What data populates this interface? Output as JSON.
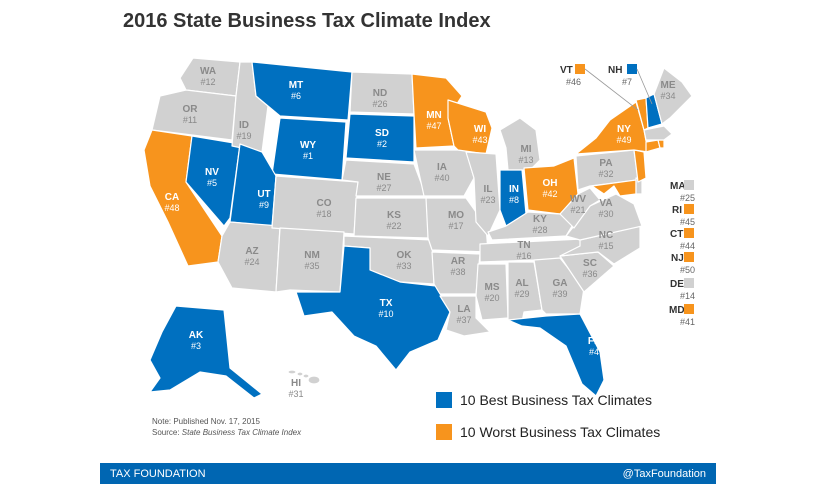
{
  "title": "2016 State Business Tax Climate Index",
  "colors": {
    "best": "#0070c0",
    "worst": "#f7941d",
    "neutral": "#d1d1d1",
    "border": "#ffffff",
    "footer": "#0066b2"
  },
  "states": {
    "WA": {
      "label": "WA",
      "rank": "#12"
    },
    "OR": {
      "label": "OR",
      "rank": "#11"
    },
    "CA": {
      "label": "CA",
      "rank": "#48"
    },
    "NV": {
      "label": "NV",
      "rank": "#5"
    },
    "ID": {
      "label": "ID",
      "rank": "#19"
    },
    "MT": {
      "label": "MT",
      "rank": "#6"
    },
    "WY": {
      "label": "WY",
      "rank": "#1"
    },
    "UT": {
      "label": "UT",
      "rank": "#9"
    },
    "AZ": {
      "label": "AZ",
      "rank": "#24"
    },
    "CO": {
      "label": "CO",
      "rank": "#18"
    },
    "NM": {
      "label": "NM",
      "rank": "#35"
    },
    "ND": {
      "label": "ND",
      "rank": "#26"
    },
    "SD": {
      "label": "SD",
      "rank": "#2"
    },
    "NE": {
      "label": "NE",
      "rank": "#27"
    },
    "KS": {
      "label": "KS",
      "rank": "#22"
    },
    "OK": {
      "label": "OK",
      "rank": "#33"
    },
    "TX": {
      "label": "TX",
      "rank": "#10"
    },
    "MN": {
      "label": "MN",
      "rank": "#47"
    },
    "IA": {
      "label": "IA",
      "rank": "#40"
    },
    "MO": {
      "label": "MO",
      "rank": "#17"
    },
    "AR": {
      "label": "AR",
      "rank": "#38"
    },
    "LA": {
      "label": "LA",
      "rank": "#37"
    },
    "WI": {
      "label": "WI",
      "rank": "#43"
    },
    "IL": {
      "label": "IL",
      "rank": "#23"
    },
    "MI": {
      "label": "MI",
      "rank": "#13"
    },
    "IN": {
      "label": "IN",
      "rank": "#8"
    },
    "OH": {
      "label": "OH",
      "rank": "#42"
    },
    "KY": {
      "label": "KY",
      "rank": "#28"
    },
    "TN": {
      "label": "TN",
      "rank": "#16"
    },
    "MS": {
      "label": "MS",
      "rank": "#20"
    },
    "AL": {
      "label": "AL",
      "rank": "#29"
    },
    "GA": {
      "label": "GA",
      "rank": "#39"
    },
    "FL": {
      "label": "FL",
      "rank": "#4"
    },
    "SC": {
      "label": "SC",
      "rank": "#36"
    },
    "NC": {
      "label": "NC",
      "rank": "#15"
    },
    "VA": {
      "label": "VA",
      "rank": "#30"
    },
    "WV": {
      "label": "WV",
      "rank": "#21"
    },
    "PA": {
      "label": "PA",
      "rank": "#32"
    },
    "NY": {
      "label": "NY",
      "rank": "#49"
    },
    "ME": {
      "label": "ME",
      "rank": "#34"
    },
    "AK": {
      "label": "AK",
      "rank": "#3"
    },
    "HI": {
      "label": "HI",
      "rank": "#31"
    }
  },
  "callouts": {
    "VT": {
      "label": "VT",
      "rank": "#46"
    },
    "NH": {
      "label": "NH",
      "rank": "#7"
    },
    "MA": {
      "label": "MA",
      "rank": "#25"
    },
    "RI": {
      "label": "RI",
      "rank": "#45"
    },
    "CT": {
      "label": "CT",
      "rank": "#44"
    },
    "NJ": {
      "label": "NJ",
      "rank": "#50"
    },
    "DE": {
      "label": "DE",
      "rank": "#14"
    },
    "MD": {
      "label": "MD",
      "rank": "#41"
    }
  },
  "legend": {
    "best_label": "10 Best Business Tax Climates",
    "worst_label": "10 Worst Business Tax Climates"
  },
  "note": {
    "line1": "Note: Published Nov. 17, 2015",
    "source_prefix": "Source: ",
    "source_title": "State Business Tax Climate Index"
  },
  "footer": {
    "left": "TAX FOUNDATION",
    "right": "@TaxFoundation"
  }
}
